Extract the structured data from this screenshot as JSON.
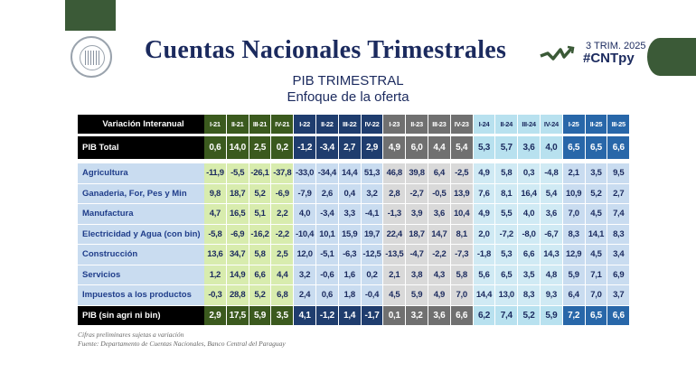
{
  "header": {
    "title": "Cuentas Nacionales Trimestrales",
    "subtitle": "PIB TRIMESTRAL",
    "subtitle2": "Enfoque de la oferta",
    "tag_period": "3 TRIM. 2025",
    "tag_hashtag": "#CNTpy",
    "logo_text": "BANCO CENTRAL DEL PARAGUAY"
  },
  "colors": {
    "brand_green": "#3b5a37",
    "navy": "#1b2a5e",
    "groups": [
      {
        "year": "2021",
        "head": "#3b5a1e",
        "body": "#d8ecae",
        "headText": "#fff"
      },
      {
        "year": "2022",
        "head": "#1f3d6e",
        "body": "#c9dcf0",
        "headText": "#fff"
      },
      {
        "year": "2023",
        "head": "#707070",
        "body": "#d9d9d9",
        "headText": "#fff"
      },
      {
        "year": "2024",
        "head": "#b8e1ef",
        "body": "#d0eaf4",
        "headText": "#1b2a5e"
      },
      {
        "year": "2025",
        "head": "#2867a9",
        "body": "#c9dcf0",
        "headText": "#fff"
      }
    ]
  },
  "table": {
    "corner": "Variación Interanual",
    "columns": [
      "I-21",
      "II-21",
      "III-21",
      "IV-21",
      "I-22",
      "II-22",
      "III-22",
      "IV-22",
      "I-23",
      "II-23",
      "III-23",
      "IV-23",
      "I-24",
      "II-24",
      "III-24",
      "IV-24",
      "I-25",
      "II-25",
      "III-25"
    ],
    "total": {
      "label": "PIB Total",
      "values": [
        "0,6",
        "14,0",
        "2,5",
        "0,2",
        "-1,2",
        "-3,4",
        "2,7",
        "2,9",
        "4,9",
        "6,0",
        "4,4",
        "5,4",
        "5,3",
        "5,7",
        "3,6",
        "4,0",
        "6,5",
        "6,5",
        "6,6"
      ]
    },
    "rows": [
      {
        "label": "Agricultura",
        "values": [
          "-11,9",
          "-5,5",
          "-26,1",
          "-37,8",
          "-33,0",
          "-34,4",
          "14,4",
          "51,3",
          "46,8",
          "39,8",
          "6,4",
          "-2,5",
          "4,9",
          "5,8",
          "0,3",
          "-4,8",
          "2,1",
          "3,5",
          "9,5"
        ]
      },
      {
        "label": "Ganaderia, For, Pes y Min",
        "values": [
          "9,8",
          "18,7",
          "5,2",
          "-6,9",
          "-7,9",
          "2,6",
          "0,4",
          "3,2",
          "2,8",
          "-2,7",
          "-0,5",
          "13,9",
          "7,6",
          "8,1",
          "16,4",
          "5,4",
          "10,9",
          "5,2",
          "2,7"
        ]
      },
      {
        "label": "Manufactura",
        "values": [
          "4,7",
          "16,5",
          "5,1",
          "2,2",
          "4,0",
          "-3,4",
          "3,3",
          "-4,1",
          "-1,3",
          "3,9",
          "3,6",
          "10,4",
          "4,9",
          "5,5",
          "4,0",
          "3,6",
          "7,0",
          "4,5",
          "7,4"
        ]
      },
      {
        "label": "Electricidad y Agua (con bin)",
        "values": [
          "-5,8",
          "-6,9",
          "-16,2",
          "-2,2",
          "-10,4",
          "10,1",
          "15,9",
          "19,7",
          "22,4",
          "18,7",
          "14,7",
          "8,1",
          "2,0",
          "-7,2",
          "-8,0",
          "-6,7",
          "8,3",
          "14,1",
          "8,3"
        ]
      },
      {
        "label": "Construcción",
        "values": [
          "13,6",
          "34,7",
          "5,8",
          "2,5",
          "12,0",
          "-5,1",
          "-6,3",
          "-12,5",
          "-13,5",
          "-4,7",
          "-2,2",
          "-7,3",
          "-1,8",
          "5,3",
          "6,6",
          "14,3",
          "12,9",
          "4,5",
          "3,4"
        ]
      },
      {
        "label": "Servicios",
        "values": [
          "1,2",
          "14,9",
          "6,6",
          "4,4",
          "3,2",
          "-0,6",
          "1,6",
          "0,2",
          "2,1",
          "3,8",
          "4,3",
          "5,8",
          "5,6",
          "6,5",
          "3,5",
          "4,8",
          "5,9",
          "7,1",
          "6,9"
        ]
      },
      {
        "label": "Impuestos a los productos",
        "values": [
          "-0,3",
          "28,8",
          "5,2",
          "6,8",
          "2,4",
          "0,6",
          "1,8",
          "-0,4",
          "4,5",
          "5,9",
          "4,9",
          "7,0",
          "14,4",
          "13,0",
          "8,3",
          "9,3",
          "6,4",
          "7,0",
          "3,7"
        ]
      }
    ],
    "footer": {
      "label": "PIB (sin agri ni bin)",
      "values": [
        "2,9",
        "17,5",
        "5,9",
        "3,5",
        "4,1",
        "-1,2",
        "1,4",
        "-1,7",
        "0,1",
        "3,2",
        "3,6",
        "6,6",
        "6,2",
        "7,4",
        "5,2",
        "5,9",
        "7,2",
        "6,5",
        "6,6"
      ]
    }
  },
  "notes": {
    "line1": "Cifras preliminares sujetas a variación",
    "line2": "Fuente: Departamento de Cuentas Nacionales, Banco Central del Paraguay"
  }
}
